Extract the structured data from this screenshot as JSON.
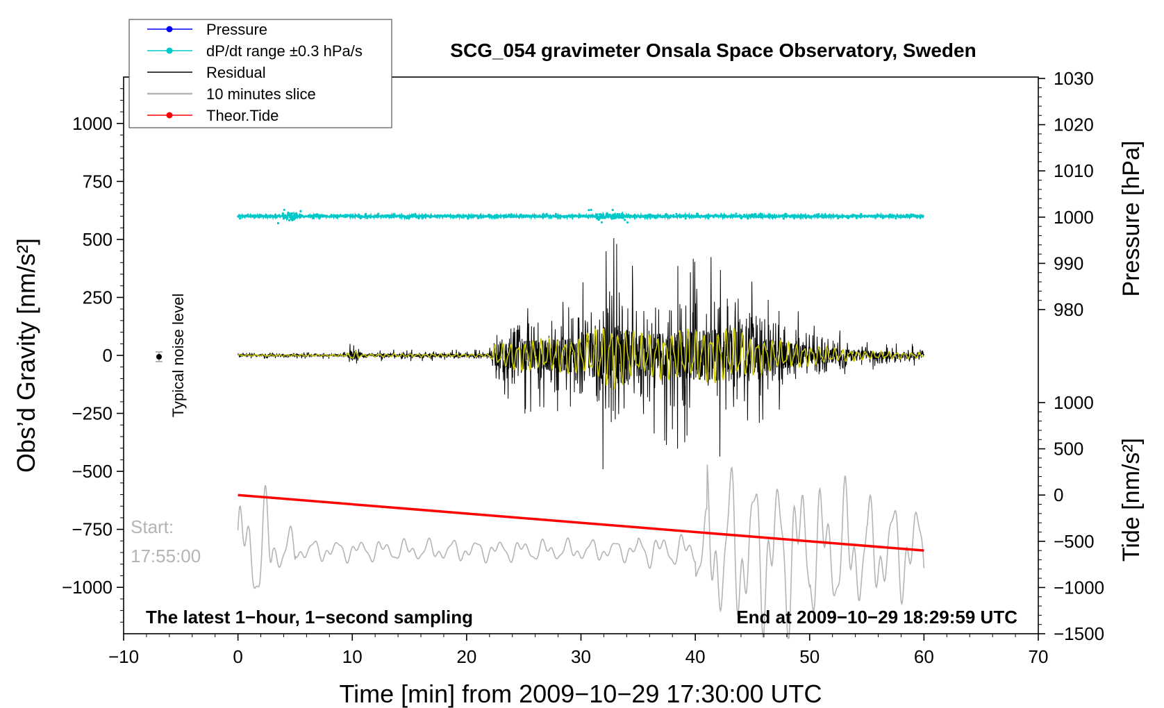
{
  "chart_data": {
    "type": "line",
    "title": "SCG_054 gravimeter Onsala Space Observatory, Sweden",
    "xlabel": "Time [min] from 2009−10−29 17:30:00 UTC",
    "ylabel_left": "Obs’d Gravity [nm/s²]",
    "ylabel_right_top": "Pressure [hPa]",
    "ylabel_right_bottom": "Tide [nm/s²]",
    "xlim": [
      -10,
      70
    ],
    "ylim_left": [
      -1200,
      1200
    ],
    "ylim_pressure": [
      970,
      1030
    ],
    "ylim_tide": [
      -1500,
      1000
    ],
    "x_ticks": [
      -10,
      0,
      10,
      20,
      30,
      40,
      50,
      60,
      70
    ],
    "x_tick_labels": [
      "−10",
      "0",
      "10",
      "20",
      "30",
      "40",
      "50",
      "60",
      "70"
    ],
    "left_ticks": [
      1000,
      750,
      500,
      250,
      0,
      -250,
      -500,
      -750,
      -1000
    ],
    "left_tick_labels": [
      "1000",
      "750",
      "500",
      "250",
      "0",
      "−250",
      "−500",
      "−750",
      "−1000"
    ],
    "pressure_ticks": [
      1030,
      1020,
      1010,
      1000,
      990,
      980
    ],
    "pressure_tick_labels": [
      "1030",
      "1020",
      "1010",
      "1000",
      "990",
      "980"
    ],
    "tide_ticks": [
      1000,
      500,
      0,
      -500,
      -1000,
      -1500
    ],
    "tide_tick_labels": [
      "1000",
      "500",
      "0",
      "−500",
      "−1000",
      "−1500"
    ],
    "legend": {
      "placement": "top-left",
      "entries": [
        {
          "label": "Pressure",
          "color": "#0000ff",
          "marker": "dot"
        },
        {
          "label": "dP/dt range ±0.3 hPa/s",
          "color": "#00c8c8",
          "marker": "dot"
        },
        {
          "label": "Residual",
          "color": "#000000",
          "marker": "none"
        },
        {
          "label": "10 minutes slice",
          "color": "#b4b4b4",
          "marker": "none"
        },
        {
          "label": "Theor.Tide",
          "color": "#ff0000",
          "marker": "dot"
        }
      ]
    },
    "series": [
      {
        "name": "dP/dt range",
        "axis": "left",
        "color": "#00c8c8",
        "x_range": [
          0,
          60
        ],
        "level": 600,
        "spread": 8,
        "bursts_at": [
          4.5,
          32.5
        ]
      },
      {
        "name": "Residual",
        "axis": "left",
        "color": "#000000",
        "x_range": [
          0,
          60
        ],
        "envelope_x": [
          0,
          9.5,
          10,
          11,
          12,
          22,
          22.5,
          25,
          30,
          32,
          33,
          35,
          38,
          43,
          45,
          48,
          52,
          55,
          60
        ],
        "envelope_amp": [
          12,
          15,
          90,
          20,
          25,
          25,
          180,
          250,
          300,
          500,
          540,
          350,
          400,
          450,
          320,
          220,
          120,
          70,
          45
        ]
      },
      {
        "name": "Residual (filtered)",
        "axis": "left",
        "color": "#c8c800",
        "x_range": [
          0,
          60
        ]
      },
      {
        "name": "10 minutes slice",
        "axis": "tide",
        "color": "#b4b4b4",
        "x_range": [
          0,
          60
        ],
        "start_label": "17:55:00"
      },
      {
        "name": "Theor.Tide",
        "axis": "tide",
        "color": "#ff0000",
        "x": [
          0,
          60
        ],
        "y": [
          0,
          -600
        ]
      }
    ],
    "noise_marker": {
      "x": -7,
      "y": 0,
      "label": "Typical noise level"
    },
    "annotations": {
      "start_label": "Start:",
      "start_time": "17:55:00",
      "bottom_left": "The latest 1−hour, 1−second sampling",
      "bottom_right": "End at 2009−10−29 18:29:59 UTC"
    }
  }
}
